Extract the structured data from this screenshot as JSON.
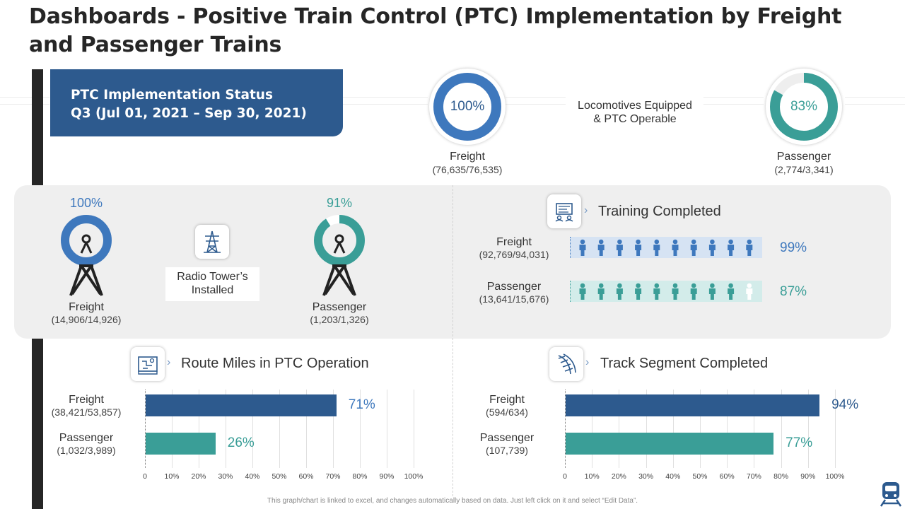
{
  "title": "Dashboards - Positive Train Control (PTC) Implementation by Freight and Passenger Trains",
  "status": {
    "line1": "PTC Implementation Status",
    "line2": "Q3 (Jul 01, 2021 – Sep 30, 2021)"
  },
  "locomotives": {
    "label": "Locomotives Equipped & PTC Operable",
    "freight": {
      "pct_label": "100%",
      "value": 100,
      "name": "Freight",
      "counts": "(76,635/76,535)"
    },
    "passenger": {
      "pct_label": "83%",
      "value": 83,
      "name": "Passenger",
      "counts": "(2,774/3,341)"
    }
  },
  "radio": {
    "label": "Radio Tower’s Installed",
    "freight": {
      "pct_label": "100%",
      "value": 100,
      "name": "Freight",
      "counts": "(14,906/14,926)"
    },
    "passenger": {
      "pct_label": "91%",
      "value": 91,
      "name": "Passenger",
      "counts": "(1,203/1,326)"
    }
  },
  "training": {
    "title": "Training Completed",
    "freight": {
      "name": "Freight",
      "counts": "(92,769/94,031)",
      "pct_label": "99%",
      "filled": 10
    },
    "passenger": {
      "name": "Passenger",
      "counts": "(13,641/15,676)",
      "pct_label": "87%",
      "filled": 9
    },
    "icon_total": 10
  },
  "colors": {
    "blue": "#2d5a8e",
    "mid_blue": "#3e78bd",
    "teal": "#3a9e97",
    "light_blue_bg": "#d6e3f3",
    "light_teal_bg": "#d3ecea"
  },
  "chart_data": [
    {
      "type": "bar",
      "title": "Route Miles in PTC Operation",
      "orientation": "horizontal",
      "categories": [
        "Freight",
        "Passenger"
      ],
      "category_counts": [
        "(38,421/53,857)",
        "(1,032/3,989)"
      ],
      "values": [
        71,
        26
      ],
      "value_labels": [
        "71%",
        "26%"
      ],
      "xlim": [
        0,
        100
      ],
      "ticks": [
        "0",
        "10%",
        "20%",
        "30%",
        "40%",
        "50%",
        "60%",
        "70%",
        "80%",
        "90%",
        "100%"
      ]
    },
    {
      "type": "bar",
      "title": "Track Segment Completed",
      "orientation": "horizontal",
      "categories": [
        "Freight",
        "Passenger"
      ],
      "category_counts": [
        "(594/634)",
        "(107,739)"
      ],
      "values": [
        94,
        77
      ],
      "value_labels": [
        "94%",
        "77%"
      ],
      "xlim": [
        0,
        100
      ],
      "ticks": [
        "0",
        "10%",
        "20%",
        "30%",
        "40%",
        "50%",
        "60%",
        "70%",
        "80%",
        "90%",
        "100%"
      ]
    }
  ],
  "footer": "This graph/chart is linked to excel, and changes automatically based on data. Just left click on it and select “Edit Data”."
}
